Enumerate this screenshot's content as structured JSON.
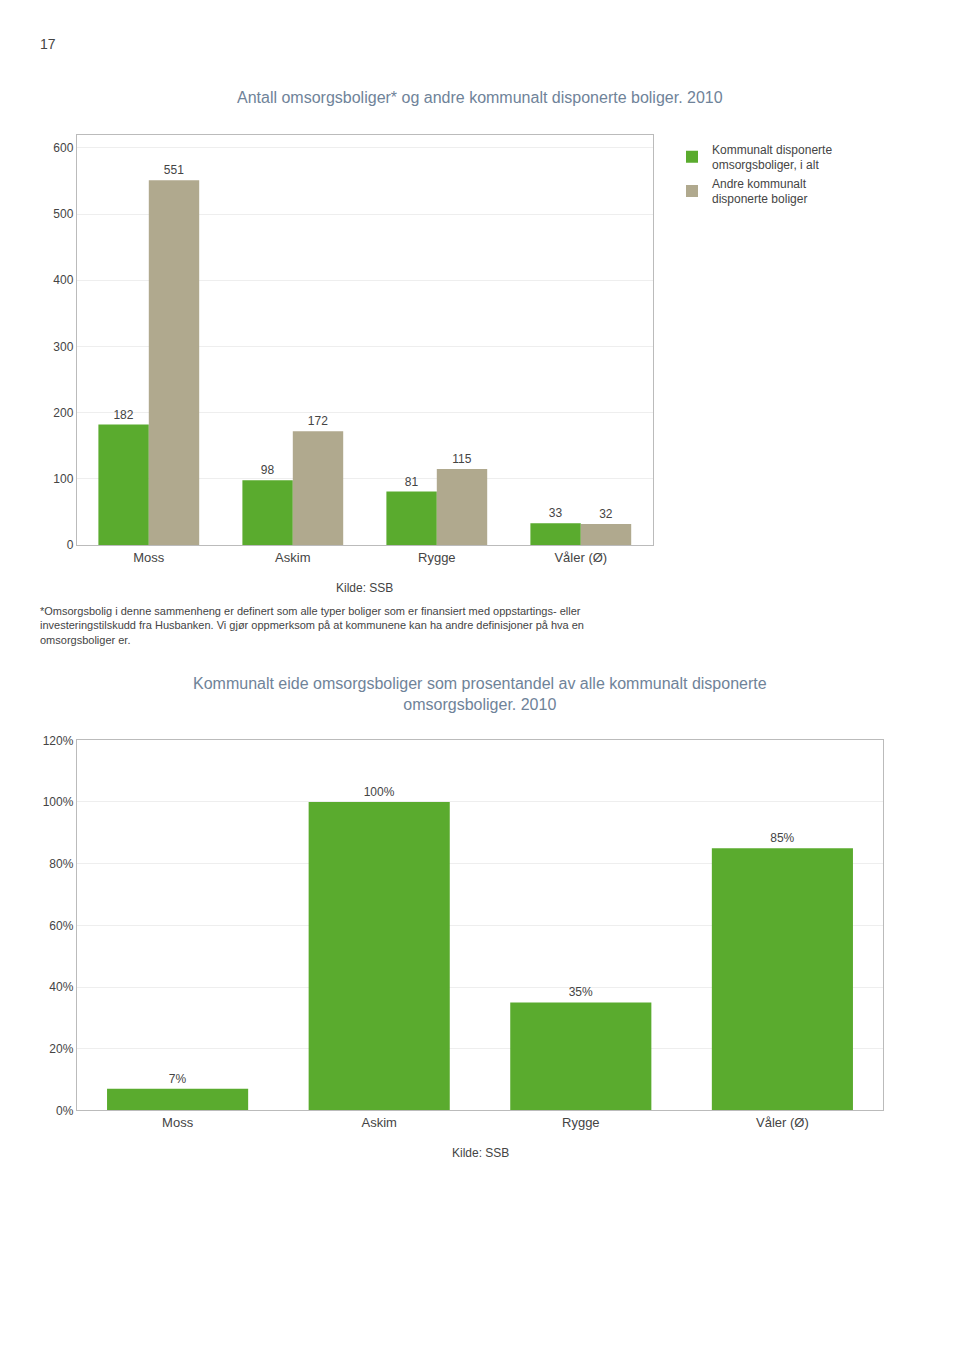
{
  "chart_data": [
    {
      "type": "bar",
      "title": "Antall omsorgsboliger* og andre kommunalt disponerte boliger. 2010",
      "categories": [
        "Moss",
        "Askim",
        "Rygge",
        "Våler (Ø)"
      ],
      "series": [
        {
          "name": "Kommunalt disponerte\nomsorgsboliger, i alt",
          "color": "#5aab2e",
          "values": [
            182,
            98,
            81,
            33
          ]
        },
        {
          "name": "Andre kommunalt\ndisponerte boliger",
          "color": "#b0a98e",
          "values": [
            551,
            172,
            115,
            32
          ]
        }
      ],
      "ylim": [
        0,
        620
      ],
      "yticks": [
        0,
        100,
        200,
        300,
        400,
        500,
        600
      ],
      "grid": true,
      "legend": "right",
      "data_labels": true,
      "annotations": [
        "17",
        "Kilde: SSB",
        "*Omsorgsbolig i denne sammenheng er definert som alle typer boliger som er finansiert med oppstartings- eller\ninvesteringstilskudd fra Husbanken. Vi gjør oppmerksom på at kommunene kan ha andre definisjoner på hva en\nomsorgsboliger er."
      ]
    },
    {
      "type": "bar",
      "title": "Kommunalt eide omsorgsboliger som prosentandel av alle kommunalt disponerte\nomsorgsboliger. 2010",
      "categories": [
        "Moss",
        "Askim",
        "Rygge",
        "Våler (Ø)"
      ],
      "values": [
        7,
        100,
        35,
        85
      ],
      "value_labels": [
        "7%",
        "100%",
        "35%",
        "85%"
      ],
      "color": "#5aab2e",
      "ylim": [
        0,
        120
      ],
      "yticks": [
        {
          "value": 0,
          "label": "0%"
        },
        {
          "value": 20,
          "label": "20%"
        },
        {
          "value": 40,
          "label": "40%"
        },
        {
          "value": 60,
          "label": "60%"
        },
        {
          "value": 80,
          "label": "80%"
        },
        {
          "value": 100,
          "label": "100%"
        },
        {
          "value": 120,
          "label": "120%"
        }
      ],
      "grid": true,
      "data_labels": true,
      "annotations": [
        "Kilde: SSB"
      ]
    }
  ]
}
